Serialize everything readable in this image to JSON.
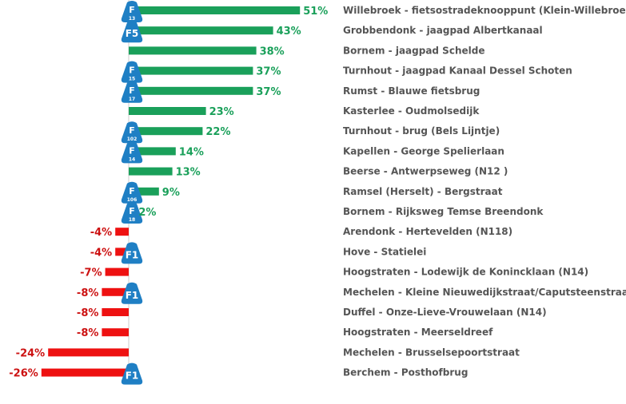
{
  "chart_data": {
    "type": "bar",
    "orientation": "horizontal",
    "categories": [
      "Willebroek - fietsostradeknooppunt (Klein-Willebroek)",
      "Grobbendonk - jaagpad Albertkanaal",
      "Bornem - jaagpad Schelde",
      "Turnhout - jaagpad Kanaal Dessel Schoten",
      "Rumst - Blauwe fietsbrug",
      "Kasterlee - Oudmolsedijk",
      "Turnhout - brug (Bels Lijntje)",
      "Kapellen - George Spelierlaan",
      "Beerse - Antwerpseweg (N12 )",
      "Ramsel (Herselt) - Bergstraat",
      "Bornem - Rijksweg Temse Breendonk",
      "Arendonk - Hertevelden (N118)",
      "Hove - Statielei",
      "Hoogstraten - Lodewijk de Konincklaan (N14)",
      "Mechelen - Kleine Nieuwedijkstraat/Caputsteenstraat",
      "Duffel - Onze-Lieve-Vrouwelaan (N14)",
      "Hoogstraten - Meerseldreef",
      "Mechelen - Brusselsepoortstraat",
      "Berchem - Posthofbrug"
    ],
    "values": [
      51,
      43,
      38,
      37,
      37,
      23,
      22,
      14,
      13,
      9,
      2,
      -4,
      -4,
      -7,
      -8,
      -8,
      -8,
      -24,
      -26
    ],
    "value_labels": [
      "51%",
      "43%",
      "38%",
      "37%",
      "37%",
      "23%",
      "22%",
      "14%",
      "13%",
      "9%",
      "2%",
      "-4%",
      "-4%",
      "-7%",
      "-8%",
      "-8%",
      "-8%",
      "-24%",
      "-26%"
    ],
    "badges": [
      {
        "row": 0,
        "route": "F",
        "number": "13"
      },
      {
        "row": 1,
        "route": "F5",
        "number": ""
      },
      {
        "row": 3,
        "route": "F",
        "number": "15"
      },
      {
        "row": 4,
        "route": "F",
        "number": "17"
      },
      {
        "row": 6,
        "route": "F",
        "number": "102"
      },
      {
        "row": 7,
        "route": "F",
        "number": "14"
      },
      {
        "row": 9,
        "route": "F",
        "number": "106"
      },
      {
        "row": 10,
        "route": "F",
        "number": "18"
      },
      {
        "row": 12,
        "route": "F1",
        "number": ""
      },
      {
        "row": 14,
        "route": "F1",
        "number": ""
      },
      {
        "row": 18,
        "route": "F1",
        "number": ""
      }
    ],
    "colors": {
      "positive": "#1aa05a",
      "negative": "#ee1111",
      "positive_label": "#1aa05a",
      "negative_label": "#cc1111",
      "badge": "#1f7fc4",
      "axis": "#cccccc"
    },
    "xlim": [
      -30,
      60
    ],
    "grid": false,
    "legend": "none"
  }
}
